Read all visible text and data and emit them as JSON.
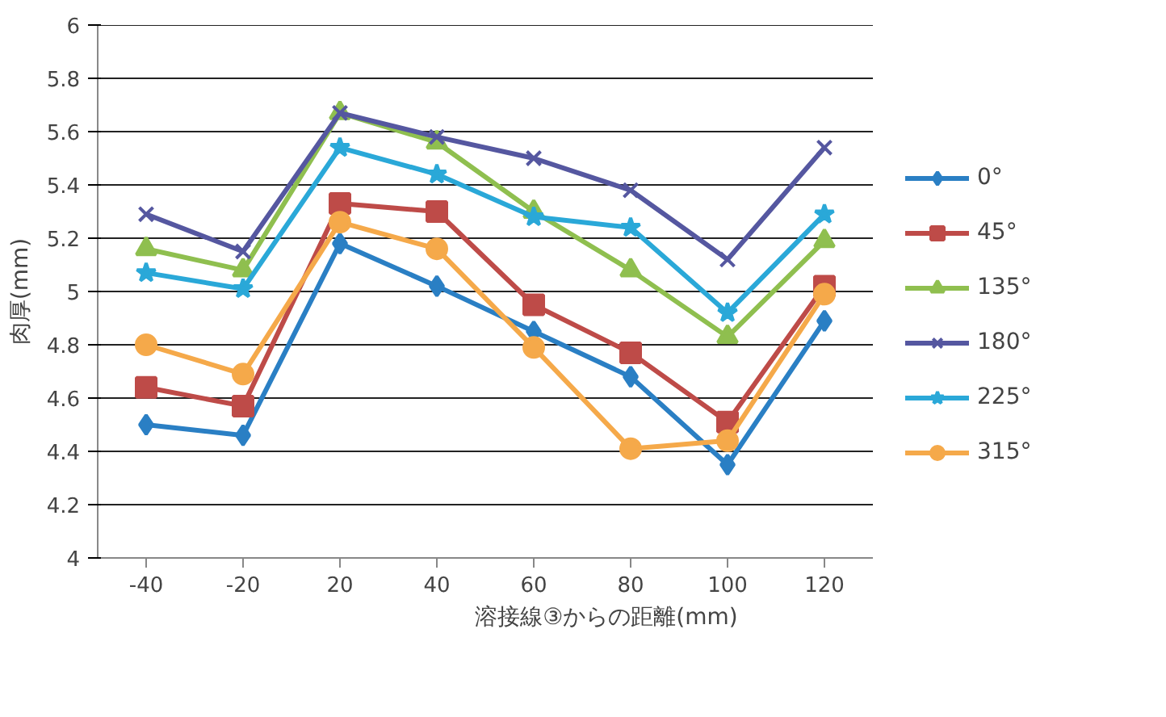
{
  "chart_data": {
    "type": "line",
    "xlabel": "溶接線③からの距離(mm)",
    "ylabel": "肉厚(mm)",
    "categories": [
      "-40",
      "-20",
      "20",
      "40",
      "60",
      "80",
      "100",
      "120"
    ],
    "ylim": [
      4,
      6
    ],
    "yticks": [
      4,
      4.2,
      4.4,
      4.6,
      4.8,
      5,
      5.2,
      5.4,
      5.6,
      5.8,
      6
    ],
    "grid": "y",
    "legend": "right",
    "line_style": "solid",
    "series": [
      {
        "name": "0°",
        "color": "#2a7fc4",
        "marker": "diamond",
        "values": [
          4.5,
          4.46,
          5.18,
          5.02,
          4.85,
          4.68,
          4.35,
          4.89
        ]
      },
      {
        "name": "45°",
        "color": "#be4b48",
        "marker": "square",
        "values": [
          4.64,
          4.57,
          5.33,
          5.3,
          4.95,
          4.77,
          4.51,
          5.02
        ]
      },
      {
        "name": "135°",
        "color": "#8fbf4f",
        "marker": "triangle",
        "values": [
          5.16,
          5.08,
          5.67,
          5.56,
          5.3,
          5.08,
          4.83,
          5.19
        ]
      },
      {
        "name": "180°",
        "color": "#5557a0",
        "marker": "cross",
        "values": [
          5.29,
          5.15,
          5.67,
          5.58,
          5.5,
          5.38,
          5.12,
          5.54
        ]
      },
      {
        "name": "225°",
        "color": "#2aa8d8",
        "marker": "star",
        "values": [
          5.07,
          5.01,
          5.54,
          5.44,
          5.28,
          5.24,
          4.92,
          5.29
        ]
      },
      {
        "name": "315°",
        "color": "#f5a94a",
        "marker": "circle",
        "values": [
          4.8,
          4.69,
          5.26,
          5.16,
          4.79,
          4.41,
          4.44,
          4.99
        ]
      }
    ]
  }
}
